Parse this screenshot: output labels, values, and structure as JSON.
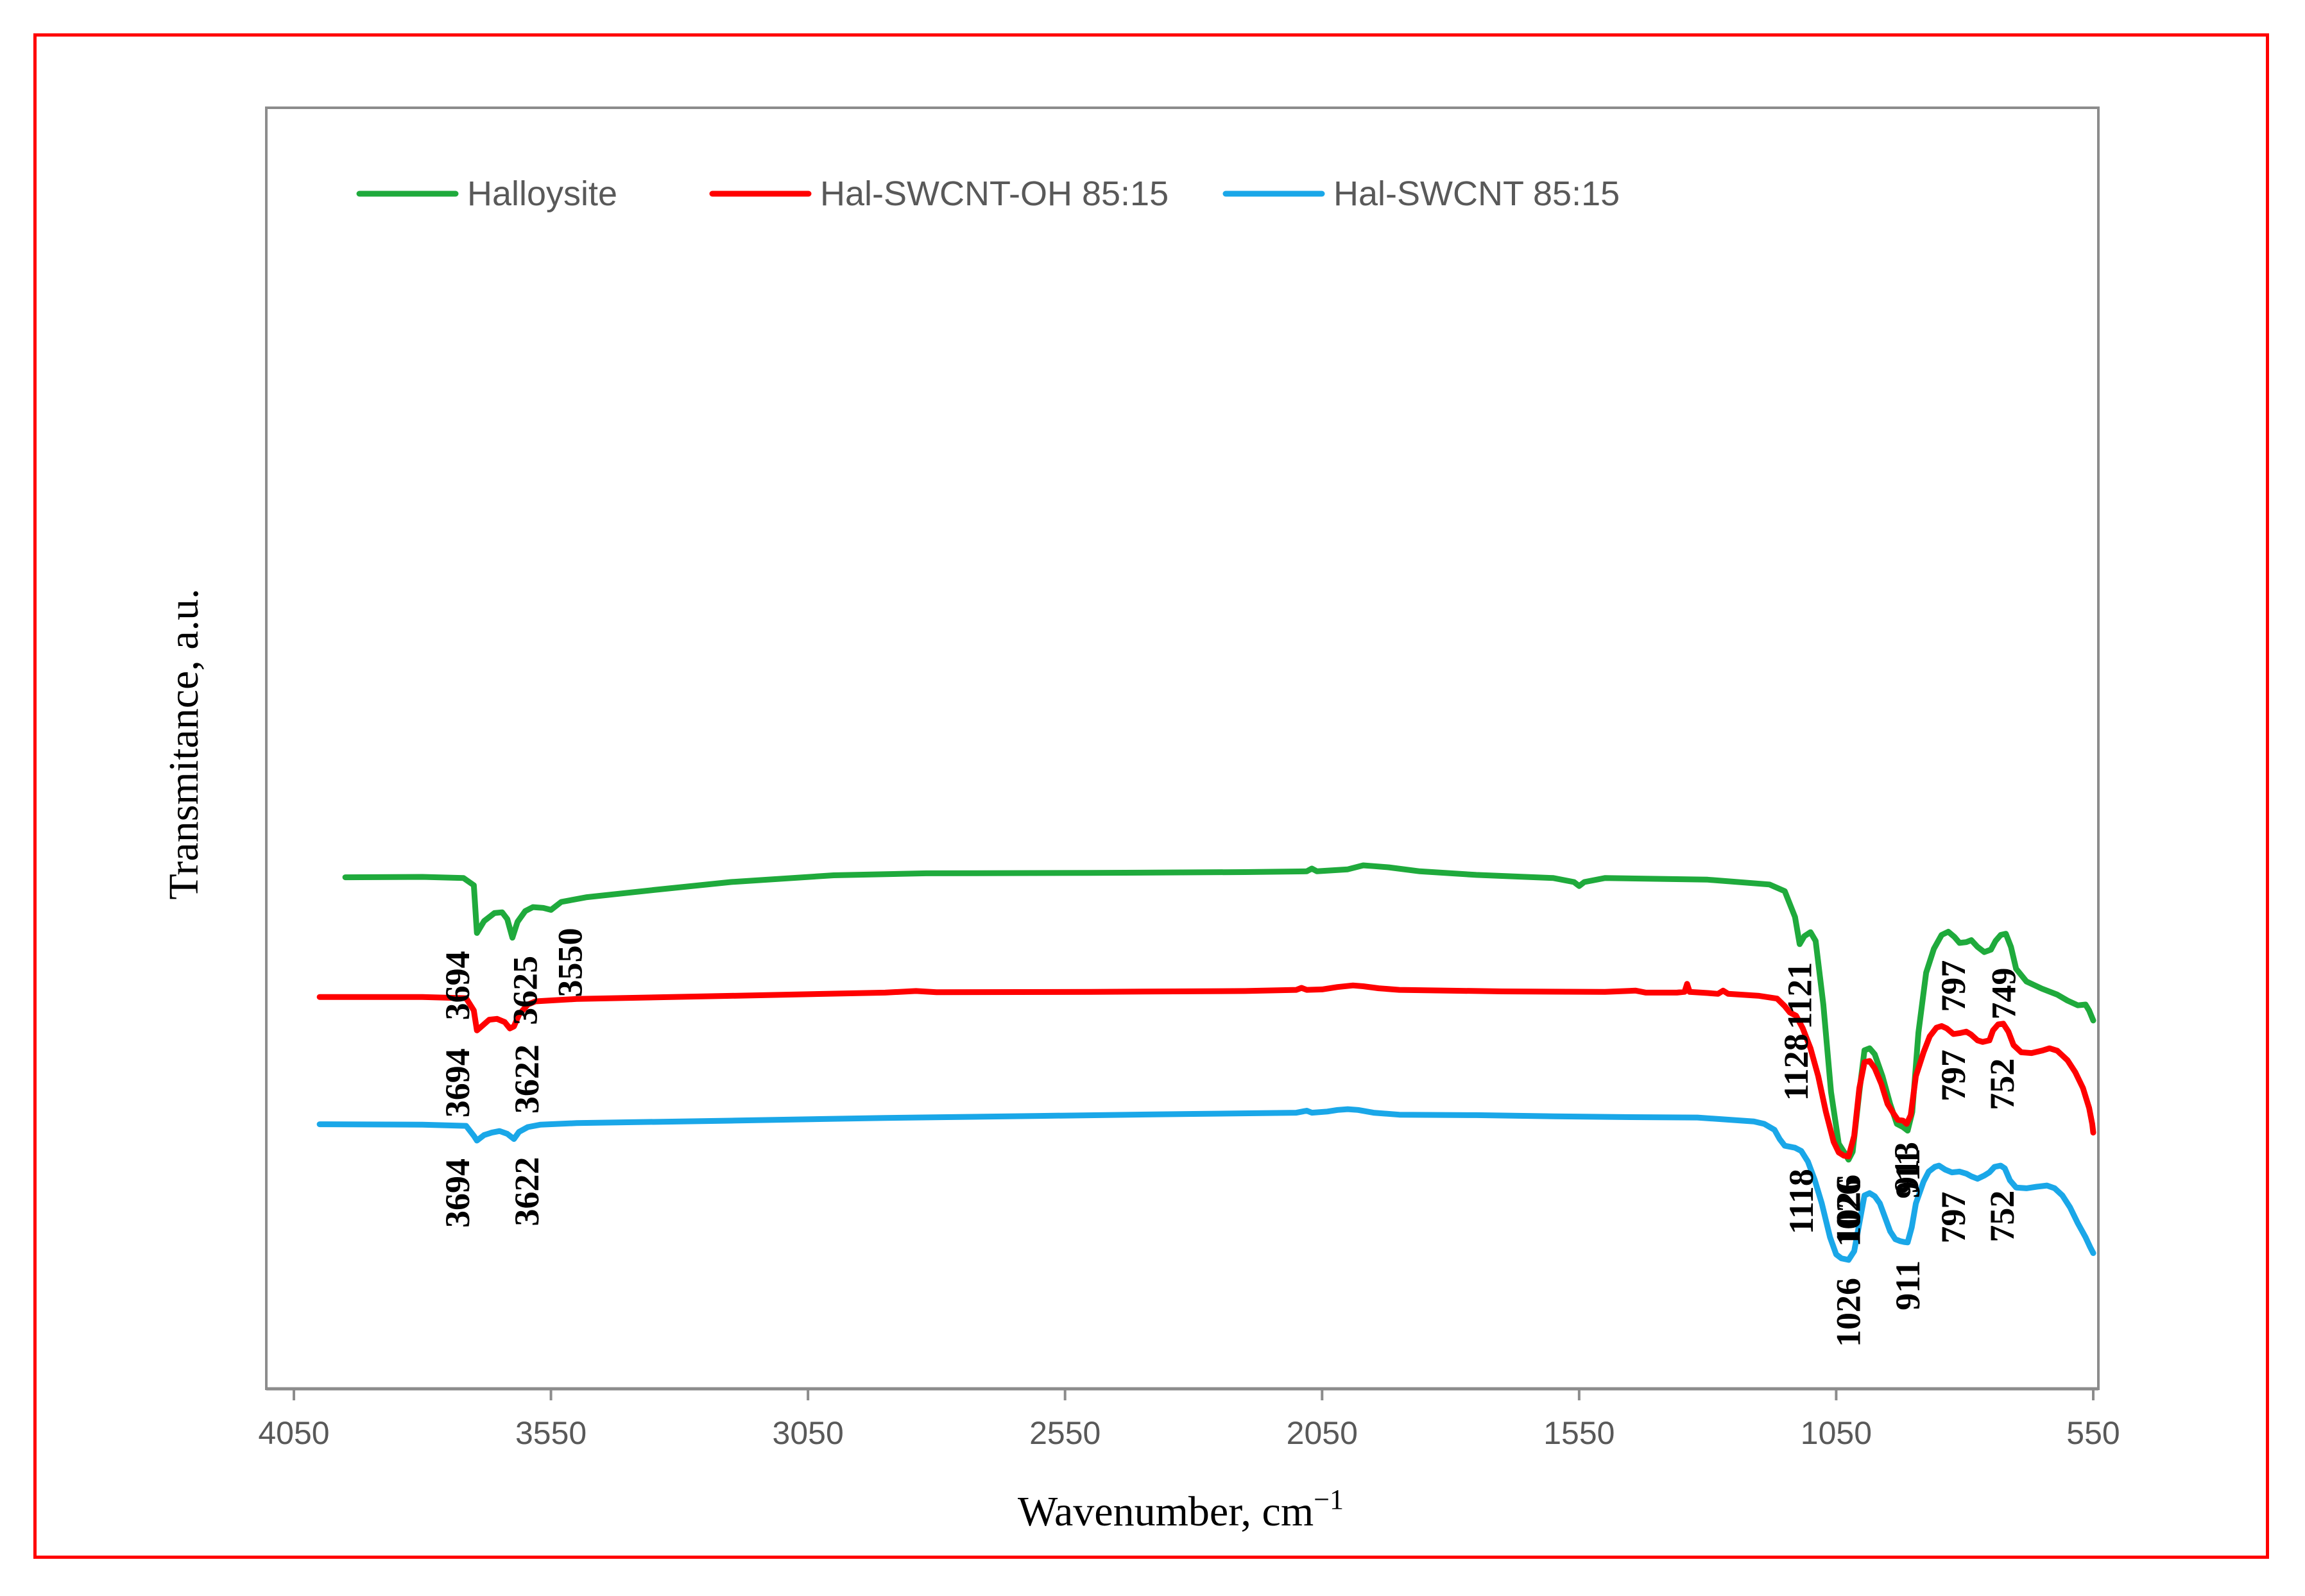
{
  "chart_data": {
    "type": "line",
    "title": "",
    "xlabel": "Wavenumber, cm",
    "xlabel_sup": "−1",
    "ylabel": "Transmitance, a.u.",
    "xlim": [
      4050,
      550
    ],
    "x_reversed": true,
    "y_ticks_shown": false,
    "grid": false,
    "legend_position": "top",
    "x_ticks": [
      {
        "v": 4050,
        "label": "4050"
      },
      {
        "v": 3550,
        "label": "3550"
      },
      {
        "v": 3050,
        "label": "3050"
      },
      {
        "v": 2550,
        "label": "2550"
      },
      {
        "v": 2050,
        "label": "2050"
      },
      {
        "v": 1550,
        "label": "1550"
      },
      {
        "v": 1050,
        "label": "1050"
      },
      {
        "v": 550,
        "label": "550"
      }
    ],
    "series": [
      {
        "name": "Halloysite",
        "color": "#1faa3c",
        "points": [
          [
            3950,
            0.92
          ],
          [
            3800,
            0.921
          ],
          [
            3720,
            0.918
          ],
          [
            3700,
            0.9
          ],
          [
            3694,
            0.78
          ],
          [
            3680,
            0.81
          ],
          [
            3660,
            0.83
          ],
          [
            3645,
            0.832
          ],
          [
            3635,
            0.815
          ],
          [
            3625,
            0.768
          ],
          [
            3615,
            0.808
          ],
          [
            3600,
            0.835
          ],
          [
            3585,
            0.845
          ],
          [
            3565,
            0.843
          ],
          [
            3550,
            0.838
          ],
          [
            3530,
            0.858
          ],
          [
            3480,
            0.87
          ],
          [
            3350,
            0.888
          ],
          [
            3200,
            0.908
          ],
          [
            3000,
            0.925
          ],
          [
            2820,
            0.93
          ],
          [
            2500,
            0.931
          ],
          [
            2200,
            0.933
          ],
          [
            2080,
            0.935
          ],
          [
            2070,
            0.942
          ],
          [
            2060,
            0.935
          ],
          [
            2000,
            0.94
          ],
          [
            1970,
            0.95
          ],
          [
            1950,
            0.948
          ],
          [
            1920,
            0.945
          ],
          [
            1860,
            0.935
          ],
          [
            1750,
            0.926
          ],
          [
            1600,
            0.918
          ],
          [
            1560,
            0.908
          ],
          [
            1550,
            0.898
          ],
          [
            1540,
            0.908
          ],
          [
            1500,
            0.918
          ],
          [
            1300,
            0.914
          ],
          [
            1180,
            0.902
          ],
          [
            1150,
            0.885
          ],
          [
            1130,
            0.82
          ],
          [
            1121,
            0.752
          ],
          [
            1112,
            0.772
          ],
          [
            1100,
            0.782
          ],
          [
            1090,
            0.76
          ],
          [
            1075,
            0.6
          ],
          [
            1060,
            0.38
          ],
          [
            1045,
            0.25
          ],
          [
            1035,
            0.23
          ],
          [
            1026,
            0.21
          ],
          [
            1018,
            0.23
          ],
          [
            1005,
            0.38
          ],
          [
            995,
            0.485
          ],
          [
            985,
            0.49
          ],
          [
            975,
            0.475
          ],
          [
            960,
            0.42
          ],
          [
            945,
            0.35
          ],
          [
            932,
            0.3
          ],
          [
            920,
            0.292
          ],
          [
            911,
            0.283
          ],
          [
            902,
            0.33
          ],
          [
            890,
            0.53
          ],
          [
            875,
            0.68
          ],
          [
            860,
            0.74
          ],
          [
            845,
            0.775
          ],
          [
            832,
            0.783
          ],
          [
            820,
            0.77
          ],
          [
            810,
            0.755
          ],
          [
            797,
            0.757
          ],
          [
            787,
            0.762
          ],
          [
            775,
            0.745
          ],
          [
            762,
            0.732
          ],
          [
            749,
            0.738
          ],
          [
            740,
            0.76
          ],
          [
            730,
            0.775
          ],
          [
            720,
            0.778
          ],
          [
            710,
            0.745
          ],
          [
            700,
            0.69
          ],
          [
            680,
            0.658
          ],
          [
            650,
            0.64
          ],
          [
            620,
            0.625
          ],
          [
            600,
            0.61
          ],
          [
            580,
            0.598
          ],
          [
            565,
            0.6
          ],
          [
            558,
            0.585
          ],
          [
            550,
            0.56
          ]
        ]
      },
      {
        "name": "Hal-SWCNT-OH 85:15",
        "color": "#ff0000",
        "points": [
          [
            4000,
            0.619
          ],
          [
            3800,
            0.619
          ],
          [
            3715,
            0.616
          ],
          [
            3700,
            0.585
          ],
          [
            3694,
            0.535
          ],
          [
            3685,
            0.545
          ],
          [
            3670,
            0.562
          ],
          [
            3655,
            0.564
          ],
          [
            3640,
            0.556
          ],
          [
            3630,
            0.54
          ],
          [
            3622,
            0.545
          ],
          [
            3612,
            0.575
          ],
          [
            3595,
            0.6
          ],
          [
            3580,
            0.608
          ],
          [
            3500,
            0.614
          ],
          [
            3200,
            0.622
          ],
          [
            2900,
            0.63
          ],
          [
            2840,
            0.634
          ],
          [
            2800,
            0.631
          ],
          [
            2500,
            0.632
          ],
          [
            2200,
            0.634
          ],
          [
            2100,
            0.637
          ],
          [
            2090,
            0.642
          ],
          [
            2080,
            0.637
          ],
          [
            2050,
            0.638
          ],
          [
            2020,
            0.644
          ],
          [
            1990,
            0.648
          ],
          [
            1970,
            0.646
          ],
          [
            1940,
            0.641
          ],
          [
            1900,
            0.637
          ],
          [
            1700,
            0.633
          ],
          [
            1500,
            0.632
          ],
          [
            1440,
            0.635
          ],
          [
            1420,
            0.63
          ],
          [
            1360,
            0.63
          ],
          [
            1345,
            0.632
          ],
          [
            1340,
            0.652
          ],
          [
            1335,
            0.632
          ],
          [
            1300,
            0.629
          ],
          [
            1280,
            0.627
          ],
          [
            1270,
            0.635
          ],
          [
            1260,
            0.627
          ],
          [
            1200,
            0.622
          ],
          [
            1165,
            0.615
          ],
          [
            1150,
            0.596
          ],
          [
            1140,
            0.58
          ],
          [
            1128,
            0.572
          ],
          [
            1115,
            0.54
          ],
          [
            1100,
            0.49
          ],
          [
            1085,
            0.42
          ],
          [
            1070,
            0.33
          ],
          [
            1055,
            0.255
          ],
          [
            1045,
            0.228
          ],
          [
            1035,
            0.22
          ],
          [
            1026,
            0.218
          ],
          [
            1015,
            0.27
          ],
          [
            1005,
            0.39
          ],
          [
            995,
            0.455
          ],
          [
            985,
            0.458
          ],
          [
            975,
            0.44
          ],
          [
            962,
            0.4
          ],
          [
            950,
            0.35
          ],
          [
            938,
            0.325
          ],
          [
            930,
            0.31
          ],
          [
            920,
            0.308
          ],
          [
            913,
            0.3
          ],
          [
            905,
            0.322
          ],
          [
            895,
            0.42
          ],
          [
            880,
            0.48
          ],
          [
            868,
            0.52
          ],
          [
            855,
            0.542
          ],
          [
            845,
            0.546
          ],
          [
            835,
            0.54
          ],
          [
            822,
            0.526
          ],
          [
            810,
            0.528
          ],
          [
            797,
            0.532
          ],
          [
            788,
            0.525
          ],
          [
            775,
            0.51
          ],
          [
            765,
            0.506
          ],
          [
            752,
            0.51
          ],
          [
            745,
            0.535
          ],
          [
            735,
            0.55
          ],
          [
            725,
            0.552
          ],
          [
            715,
            0.532
          ],
          [
            705,
            0.498
          ],
          [
            690,
            0.48
          ],
          [
            670,
            0.478
          ],
          [
            650,
            0.484
          ],
          [
            635,
            0.49
          ],
          [
            620,
            0.484
          ],
          [
            600,
            0.46
          ],
          [
            585,
            0.43
          ],
          [
            570,
            0.39
          ],
          [
            558,
            0.34
          ],
          [
            552,
            0.3
          ],
          [
            550,
            0.278
          ]
        ]
      },
      {
        "name": "Hal-SWCNT 85:15",
        "color": "#1aa7e8",
        "points": [
          [
            4000,
            0.299
          ],
          [
            3800,
            0.298
          ],
          [
            3715,
            0.295
          ],
          [
            3700,
            0.27
          ],
          [
            3694,
            0.258
          ],
          [
            3680,
            0.272
          ],
          [
            3665,
            0.278
          ],
          [
            3650,
            0.282
          ],
          [
            3635,
            0.275
          ],
          [
            3622,
            0.262
          ],
          [
            3612,
            0.28
          ],
          [
            3595,
            0.292
          ],
          [
            3570,
            0.298
          ],
          [
            3500,
            0.302
          ],
          [
            3200,
            0.308
          ],
          [
            2900,
            0.315
          ],
          [
            2600,
            0.32
          ],
          [
            2300,
            0.325
          ],
          [
            2100,
            0.328
          ],
          [
            2080,
            0.333
          ],
          [
            2070,
            0.328
          ],
          [
            2040,
            0.331
          ],
          [
            2020,
            0.335
          ],
          [
            2000,
            0.337
          ],
          [
            1980,
            0.335
          ],
          [
            1950,
            0.328
          ],
          [
            1900,
            0.323
          ],
          [
            1750,
            0.322
          ],
          [
            1600,
            0.319
          ],
          [
            1450,
            0.317
          ],
          [
            1320,
            0.316
          ],
          [
            1210,
            0.306
          ],
          [
            1190,
            0.3
          ],
          [
            1170,
            0.285
          ],
          [
            1160,
            0.262
          ],
          [
            1150,
            0.245
          ],
          [
            1130,
            0.24
          ],
          [
            1118,
            0.232
          ],
          [
            1105,
            0.205
          ],
          [
            1092,
            0.16
          ],
          [
            1078,
            0.1
          ],
          [
            1062,
            0.015
          ],
          [
            1050,
            -0.028
          ],
          [
            1040,
            -0.038
          ],
          [
            1026,
            -0.042
          ],
          [
            1015,
            -0.02
          ],
          [
            1005,
            0.05
          ],
          [
            995,
            0.12
          ],
          [
            985,
            0.126
          ],
          [
            975,
            0.118
          ],
          [
            965,
            0.1
          ],
          [
            955,
            0.065
          ],
          [
            945,
            0.03
          ],
          [
            935,
            0.01
          ],
          [
            925,
            0.005
          ],
          [
            918,
            0.003
          ],
          [
            911,
            0.002
          ],
          [
            903,
            0.04
          ],
          [
            895,
            0.1
          ],
          [
            880,
            0.155
          ],
          [
            870,
            0.18
          ],
          [
            858,
            0.192
          ],
          [
            850,
            0.195
          ],
          [
            838,
            0.185
          ],
          [
            825,
            0.178
          ],
          [
            810,
            0.18
          ],
          [
            797,
            0.175
          ],
          [
            787,
            0.168
          ],
          [
            775,
            0.162
          ],
          [
            762,
            0.17
          ],
          [
            752,
            0.178
          ],
          [
            742,
            0.192
          ],
          [
            730,
            0.195
          ],
          [
            722,
            0.188
          ],
          [
            712,
            0.158
          ],
          [
            700,
            0.14
          ],
          [
            680,
            0.138
          ],
          [
            660,
            0.142
          ],
          [
            640,
            0.145
          ],
          [
            625,
            0.138
          ],
          [
            610,
            0.12
          ],
          [
            595,
            0.09
          ],
          [
            580,
            0.05
          ],
          [
            565,
            0.015
          ],
          [
            556,
            -0.01
          ],
          [
            550,
            -0.025
          ]
        ]
      }
    ],
    "annotations": [
      {
        "label": "3694",
        "x": 3694,
        "series": 0
      },
      {
        "label": "3625",
        "x": 3625,
        "series": 0
      },
      {
        "label": "3550",
        "x": 3550,
        "series": 0
      },
      {
        "label": "1121",
        "x": 1121,
        "series": 0
      },
      {
        "label": "1026",
        "x": 1026,
        "series": 0
      },
      {
        "label": "911",
        "x": 911,
        "series": 0
      },
      {
        "label": "797",
        "x": 797,
        "series": 0
      },
      {
        "label": "749",
        "x": 749,
        "series": 0
      },
      {
        "label": "3694",
        "x": 3694,
        "series": 1
      },
      {
        "label": "3622",
        "x": 3622,
        "series": 1
      },
      {
        "label": "1128",
        "x": 1128,
        "series": 1
      },
      {
        "label": "1026",
        "x": 1026,
        "series": 1
      },
      {
        "label": "913",
        "x": 913,
        "series": 1
      },
      {
        "label": "797",
        "x": 797,
        "series": 1
      },
      {
        "label": "752",
        "x": 752,
        "series": 1
      },
      {
        "label": "3694",
        "x": 3694,
        "series": 2
      },
      {
        "label": "3622",
        "x": 3622,
        "series": 2
      },
      {
        "label": "1118",
        "x": 1118,
        "series": 2
      },
      {
        "label": "1026",
        "x": 1026,
        "series": 2
      },
      {
        "label": "911",
        "x": 911,
        "series": 2
      },
      {
        "label": "797",
        "x": 797,
        "series": 2
      },
      {
        "label": "752",
        "x": 752,
        "series": 2
      }
    ]
  }
}
